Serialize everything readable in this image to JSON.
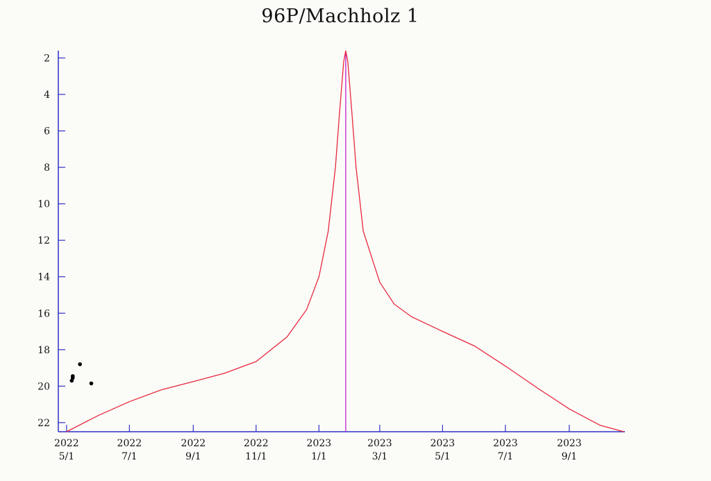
{
  "chart_data": {
    "type": "line",
    "title": "96P/Machholz 1",
    "xlabel": "",
    "ylabel": "",
    "ylim": [
      22.5,
      1.6
    ],
    "y_axis_inverted": true,
    "grid": false,
    "y_ticks": [
      2,
      4,
      6,
      8,
      10,
      12,
      14,
      16,
      18,
      20,
      22
    ],
    "x_ticks": [
      {
        "date": "2022-05-01",
        "year": "2022",
        "md": "5/1"
      },
      {
        "date": "2022-07-01",
        "year": "2022",
        "md": "7/1"
      },
      {
        "date": "2022-09-01",
        "year": "2022",
        "md": "9/1"
      },
      {
        "date": "2022-11-01",
        "year": "2022",
        "md": "11/1"
      },
      {
        "date": "2023-01-01",
        "year": "2023",
        "md": "1/1"
      },
      {
        "date": "2023-03-01",
        "year": "2023",
        "md": "3/1"
      },
      {
        "date": "2023-05-01",
        "year": "2023",
        "md": "5/1"
      },
      {
        "date": "2023-07-01",
        "year": "2023",
        "md": "7/1"
      },
      {
        "date": "2023-09-01",
        "year": "2023",
        "md": "9/1"
      }
    ],
    "xlim": [
      "2022-04-23",
      "2023-10-25"
    ],
    "series": [
      {
        "color": "#e8283c",
        "points": [
          [
            "2022-05-01",
            22.5
          ],
          [
            "2022-06-01",
            21.6
          ],
          [
            "2022-07-01",
            20.85
          ],
          [
            "2022-08-01",
            20.2
          ],
          [
            "2022-09-01",
            19.75
          ],
          [
            "2022-10-01",
            19.3
          ],
          [
            "2022-11-01",
            18.65
          ],
          [
            "2022-12-01",
            17.3
          ],
          [
            "2022-12-20",
            15.8
          ],
          [
            "2023-01-01",
            14.0
          ],
          [
            "2023-01-10",
            11.5
          ],
          [
            "2023-01-17",
            8.0
          ],
          [
            "2023-01-21",
            5.0
          ],
          [
            "2023-01-25",
            2.2
          ],
          [
            "2023-01-27",
            1.6
          ],
          [
            "2023-01-29",
            2.2
          ],
          [
            "2023-02-02",
            5.0
          ],
          [
            "2023-02-06",
            8.0
          ],
          [
            "2023-02-13",
            11.5
          ],
          [
            "2023-03-01",
            14.3
          ],
          [
            "2023-03-15",
            15.5
          ],
          [
            "2023-04-01",
            16.2
          ],
          [
            "2023-05-01",
            17.0
          ],
          [
            "2023-06-01",
            17.8
          ],
          [
            "2023-07-01",
            18.9
          ],
          [
            "2023-08-01",
            20.1
          ],
          [
            "2023-09-01",
            21.25
          ],
          [
            "2023-10-01",
            22.15
          ],
          [
            "2023-10-24",
            22.5
          ]
        ]
      }
    ],
    "observations": {
      "color": "#000000",
      "points": [
        [
          "2022-05-06",
          19.7
        ],
        [
          "2022-05-07",
          19.55
        ],
        [
          "2022-05-07",
          19.45
        ],
        [
          "2022-05-14",
          18.8
        ],
        [
          "2022-05-25",
          19.85
        ]
      ]
    },
    "marker_line": {
      "date": "2023-01-27",
      "color": "#c01fd0"
    },
    "axis_color": "#3030c8"
  }
}
